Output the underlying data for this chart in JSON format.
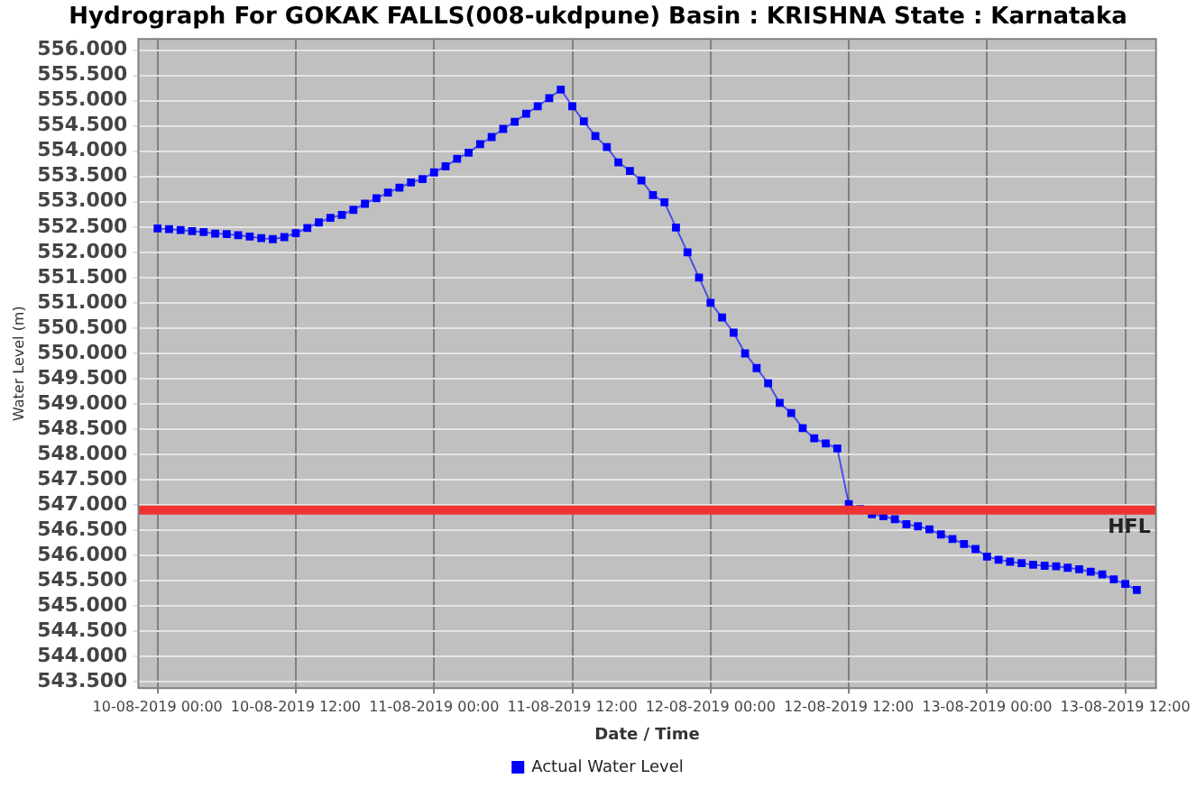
{
  "chart_data": {
    "type": "line",
    "title": "Hydrograph For GOKAK FALLS(008-ukdpune) Basin : KRISHNA State : Karnataka",
    "xlabel": "Date / Time",
    "ylabel": "Water Level (m)",
    "x": [
      "2019-08-10T00:00",
      "2019-08-10T01:00",
      "2019-08-10T02:00",
      "2019-08-10T03:00",
      "2019-08-10T04:00",
      "2019-08-10T05:00",
      "2019-08-10T06:00",
      "2019-08-10T07:00",
      "2019-08-10T08:00",
      "2019-08-10T09:00",
      "2019-08-10T10:00",
      "2019-08-10T11:00",
      "2019-08-10T12:00",
      "2019-08-10T13:00",
      "2019-08-10T14:00",
      "2019-08-10T15:00",
      "2019-08-10T16:00",
      "2019-08-10T17:00",
      "2019-08-10T18:00",
      "2019-08-10T19:00",
      "2019-08-10T20:00",
      "2019-08-10T21:00",
      "2019-08-10T22:00",
      "2019-08-10T23:00",
      "2019-08-11T00:00",
      "2019-08-11T01:00",
      "2019-08-11T02:00",
      "2019-08-11T03:00",
      "2019-08-11T04:00",
      "2019-08-11T05:00",
      "2019-08-11T06:00",
      "2019-08-11T07:00",
      "2019-08-11T08:00",
      "2019-08-11T09:00",
      "2019-08-11T10:00",
      "2019-08-11T11:00",
      "2019-08-11T12:00",
      "2019-08-11T13:00",
      "2019-08-11T14:00",
      "2019-08-11T15:00",
      "2019-08-11T16:00",
      "2019-08-11T17:00",
      "2019-08-11T18:00",
      "2019-08-11T19:00",
      "2019-08-11T20:00",
      "2019-08-11T21:00",
      "2019-08-11T22:00",
      "2019-08-11T23:00",
      "2019-08-12T00:00",
      "2019-08-12T01:00",
      "2019-08-12T02:00",
      "2019-08-12T03:00",
      "2019-08-12T04:00",
      "2019-08-12T05:00",
      "2019-08-12T06:00",
      "2019-08-12T07:00",
      "2019-08-12T08:00",
      "2019-08-12T09:00",
      "2019-08-12T10:00",
      "2019-08-12T11:00",
      "2019-08-12T12:00",
      "2019-08-12T13:00",
      "2019-08-12T14:00",
      "2019-08-12T15:00",
      "2019-08-12T16:00",
      "2019-08-12T17:00",
      "2019-08-12T18:00",
      "2019-08-12T19:00",
      "2019-08-12T20:00",
      "2019-08-12T21:00",
      "2019-08-12T22:00",
      "2019-08-12T23:00",
      "2019-08-13T00:00",
      "2019-08-13T01:00",
      "2019-08-13T02:00",
      "2019-08-13T03:00",
      "2019-08-13T04:00",
      "2019-08-13T05:00",
      "2019-08-13T06:00",
      "2019-08-13T07:00",
      "2019-08-13T08:00",
      "2019-08-13T09:00",
      "2019-08-13T10:00",
      "2019-08-13T11:00",
      "2019-08-13T12:00",
      "2019-08-13T13:00"
    ],
    "series": [
      {
        "name": "Actual Water Level",
        "color": "#0000ff",
        "values": [
          552.47,
          552.46,
          552.44,
          552.42,
          552.4,
          552.37,
          552.36,
          552.34,
          552.31,
          552.28,
          552.26,
          552.3,
          552.38,
          552.48,
          552.59,
          552.68,
          552.74,
          552.84,
          552.96,
          553.07,
          553.18,
          553.28,
          553.38,
          553.45,
          553.58,
          553.7,
          553.85,
          553.97,
          554.14,
          554.28,
          554.44,
          554.58,
          554.74,
          554.89,
          555.05,
          555.22,
          554.89,
          554.59,
          554.3,
          554.08,
          553.78,
          553.61,
          553.42,
          553.13,
          552.99,
          552.49,
          552.0,
          551.5,
          551.0,
          550.71,
          550.41,
          550.0,
          549.71,
          549.41,
          549.02,
          548.82,
          548.52,
          548.32,
          548.22,
          548.12,
          547.02,
          546.92,
          546.82,
          546.78,
          546.72,
          546.62,
          546.58,
          546.52,
          546.42,
          546.33,
          546.23,
          546.13,
          545.98,
          545.92,
          545.88,
          545.85,
          545.82,
          545.8,
          545.79,
          545.76,
          545.73,
          545.68,
          545.63,
          545.53,
          545.44,
          545.32
        ]
      }
    ],
    "xlim": [
      "2019-08-09T22:20",
      "2019-08-13T14:40"
    ],
    "xticks": [
      {
        "value": "2019-08-10T00:00",
        "label": "10-08-2019 00:00"
      },
      {
        "value": "2019-08-10T12:00",
        "label": "10-08-2019 12:00"
      },
      {
        "value": "2019-08-11T00:00",
        "label": "11-08-2019 00:00"
      },
      {
        "value": "2019-08-11T12:00",
        "label": "11-08-2019 12:00"
      },
      {
        "value": "2019-08-12T00:00",
        "label": "12-08-2019 00:00"
      },
      {
        "value": "2019-08-12T12:00",
        "label": "12-08-2019 12:00"
      },
      {
        "value": "2019-08-13T00:00",
        "label": "13-08-2019 00:00"
      },
      {
        "value": "2019-08-13T12:00",
        "label": "13-08-2019 12:00"
      }
    ],
    "ylim": [
      543.38,
      556.22
    ],
    "yticks": [
      {
        "value": 543.5,
        "label": "543.500"
      },
      {
        "value": 544,
        "label": "544.000"
      },
      {
        "value": 544.5,
        "label": "544.500"
      },
      {
        "value": 545,
        "label": "545.000"
      },
      {
        "value": 545.5,
        "label": "545.500"
      },
      {
        "value": 546,
        "label": "546.000"
      },
      {
        "value": 546.5,
        "label": "546.500"
      },
      {
        "value": 547,
        "label": "547.000"
      },
      {
        "value": 547.5,
        "label": "547.500"
      },
      {
        "value": 548,
        "label": "548.000"
      },
      {
        "value": 548.5,
        "label": "548.500"
      },
      {
        "value": 549,
        "label": "549.000"
      },
      {
        "value": 549.5,
        "label": "549.500"
      },
      {
        "value": 550,
        "label": "550.000"
      },
      {
        "value": 550.5,
        "label": "550.500"
      },
      {
        "value": 551,
        "label": "551.000"
      },
      {
        "value": 551.5,
        "label": "551.500"
      },
      {
        "value": 552,
        "label": "552.000"
      },
      {
        "value": 552.5,
        "label": "552.500"
      },
      {
        "value": 553,
        "label": "553.000"
      },
      {
        "value": 553.5,
        "label": "553.500"
      },
      {
        "value": 554,
        "label": "554.000"
      },
      {
        "value": 554.5,
        "label": "554.500"
      },
      {
        "value": 555,
        "label": "555.000"
      },
      {
        "value": 555.5,
        "label": "555.500"
      },
      {
        "value": 556,
        "label": "556.000"
      }
    ],
    "ref_lines": [
      {
        "axis": "y",
        "value": 546.9,
        "label": "HFL",
        "color": "#ee3333"
      }
    ],
    "grid": true,
    "legend": "bottom",
    "marker": "square",
    "line_style": "solid"
  }
}
